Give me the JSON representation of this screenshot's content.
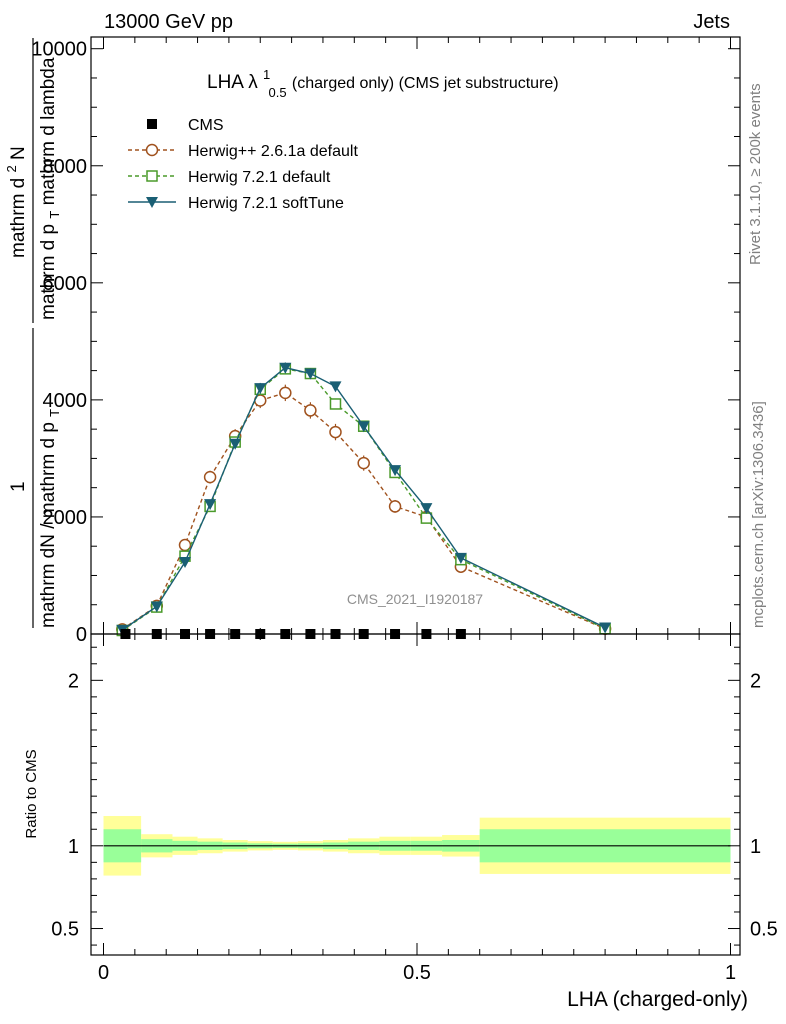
{
  "header": {
    "energy_label": "13000 GeV pp",
    "process_label": "Jets"
  },
  "side_labels": {
    "rivet": "Rivet 3.1.10, ≥ 200k events",
    "mcplots": "mcplots.cern.ch [arXiv:1306.3436]"
  },
  "chart_data": [
    {
      "type": "line",
      "title_main": "LHA λ",
      "title_sup": "1",
      "title_sub": "0.5",
      "title_rest": " (charged only) (CMS jet substructure)",
      "watermark": "CMS_2021_I1920187",
      "ylabel_parts": {
        "num_one": "1",
        "den_main": "mathrm dN / mathrm d p",
        "den_sub": "T",
        "num_second": "mathrm d",
        "num_second_sup": "2",
        "num_second_rest": "N",
        "den_second": "mathrm d p",
        "den_second_sub": "T",
        "den_second_rest": " mathrm d lambda"
      },
      "xlim": [
        0,
        1
      ],
      "ylim": [
        0,
        10200
      ],
      "y_ticks": [
        0,
        2000,
        4000,
        6000,
        8000,
        10000
      ],
      "y_tick_labels": [
        "0",
        "2000",
        "4000",
        "6000",
        "8000",
        "10000"
      ],
      "legend_position": "top-left",
      "series": [
        {
          "name": "CMS",
          "color": "#000000",
          "marker": "square-filled",
          "x": [
            0.035,
            0.085,
            0.13,
            0.17,
            0.21,
            0.25,
            0.29,
            0.33,
            0.37,
            0.415,
            0.465,
            0.515,
            0.57
          ],
          "y": [
            0,
            0,
            0,
            0,
            0,
            0,
            0,
            0,
            0,
            0,
            0,
            0,
            0
          ]
        },
        {
          "name": "Herwig++ 2.6.1a default",
          "color": "#a0521e",
          "marker": "circle-open",
          "dash": true,
          "x": [
            0.03,
            0.085,
            0.13,
            0.17,
            0.21,
            0.25,
            0.29,
            0.33,
            0.37,
            0.415,
            0.465,
            0.515,
            0.57,
            0.8
          ],
          "y": [
            80,
            480,
            1520,
            2680,
            3380,
            3990,
            4120,
            3820,
            3450,
            2920,
            2180,
            2000,
            1150,
            90
          ],
          "err": [
            30,
            50,
            90,
            110,
            120,
            130,
            140,
            140,
            140,
            130,
            110,
            100,
            70,
            15
          ]
        },
        {
          "name": "Herwig 7.2.1 default",
          "color": "#4a9a2a",
          "marker": "square-open",
          "dash": true,
          "x": [
            0.03,
            0.085,
            0.13,
            0.17,
            0.21,
            0.25,
            0.29,
            0.33,
            0.37,
            0.415,
            0.465,
            0.515,
            0.57,
            0.8
          ],
          "y": [
            60,
            460,
            1330,
            2180,
            3280,
            4180,
            4530,
            4450,
            3930,
            3550,
            2760,
            1980,
            1270,
            90
          ],
          "err": [
            20,
            40,
            60,
            70,
            80,
            90,
            90,
            90,
            80,
            80,
            70,
            60,
            40,
            10
          ]
        },
        {
          "name": "Herwig 7.2.1 softTune",
          "color": "#1a5f74",
          "marker": "triangle-down-filled",
          "dash": false,
          "x": [
            0.03,
            0.085,
            0.13,
            0.17,
            0.21,
            0.25,
            0.29,
            0.33,
            0.37,
            0.415,
            0.465,
            0.515,
            0.57,
            0.8
          ],
          "y": [
            70,
            470,
            1230,
            2220,
            3250,
            4200,
            4550,
            4450,
            4230,
            3550,
            2800,
            2150,
            1300,
            110
          ],
          "err": [
            20,
            40,
            60,
            70,
            80,
            90,
            90,
            90,
            80,
            80,
            70,
            60,
            40,
            10
          ]
        }
      ]
    },
    {
      "type": "area",
      "ylabel": "Ratio to CMS",
      "xlabel": "LHA (charged-only)",
      "xlim": [
        0,
        1
      ],
      "ylim": [
        0.34,
        2.28
      ],
      "x_ticks": [
        0,
        0.5,
        1
      ],
      "x_tick_labels": [
        "0",
        "0.5",
        "1"
      ],
      "y_ticks": [
        0.5,
        1,
        2
      ],
      "y_tick_labels": [
        "0.5",
        "1",
        "2"
      ],
      "reference_line": 1,
      "bins": [
        0,
        0.06,
        0.11,
        0.15,
        0.19,
        0.23,
        0.27,
        0.31,
        0.35,
        0.39,
        0.44,
        0.49,
        0.54,
        0.6,
        1.0
      ],
      "inner_band": [
        0.1,
        0.04,
        0.03,
        0.025,
        0.02,
        0.015,
        0.013,
        0.015,
        0.02,
        0.025,
        0.03,
        0.03,
        0.035,
        0.1
      ],
      "outer_band": [
        0.18,
        0.07,
        0.055,
        0.045,
        0.035,
        0.028,
        0.024,
        0.028,
        0.035,
        0.045,
        0.055,
        0.055,
        0.065,
        0.17
      ],
      "inner_color": "#99ff99",
      "outer_color": "#ffff99"
    }
  ]
}
